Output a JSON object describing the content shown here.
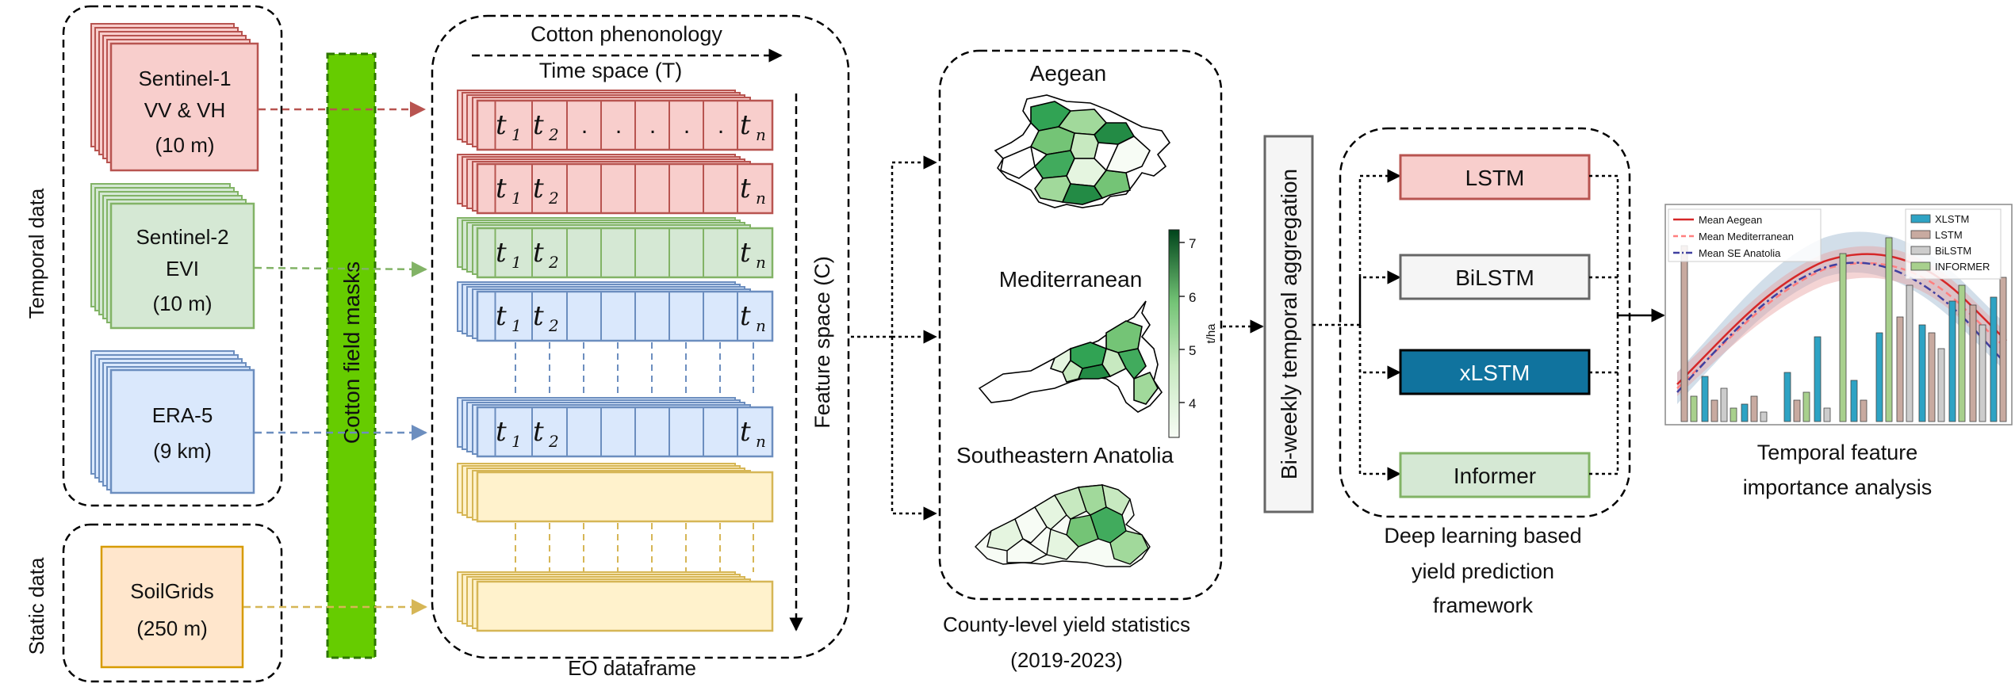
{
  "groups": {
    "temporal_label": "Temporal data",
    "static_label": "Static data",
    "mask_label": "Cotton field masks"
  },
  "sources": {
    "sentinel1": {
      "line1": "Sentinel-1",
      "line2": "VV & VH",
      "line3": "(10 m)"
    },
    "sentinel2": {
      "line1": "Sentinel-2",
      "line2": "EVI",
      "line3": "(10 m)"
    },
    "era5": {
      "line1": "ERA-5",
      "line2": "(9 km)"
    },
    "soilgrids": {
      "line1": "SoilGrids",
      "line2": "(250 m)"
    }
  },
  "dataframe": {
    "phenology_label": "Cotton phenonology",
    "time_label": "Time space (T)",
    "feature_label": "Feature space (C)",
    "caption": "EO dataframe",
    "cell_t1": "t",
    "cell_t2": "t",
    "cell_tn": "t",
    "sub_1": "1",
    "sub_2": "2",
    "sub_n": "n",
    "dot": "."
  },
  "maps": {
    "region1": "Aegean",
    "region2": "Mediterranean",
    "region3": "Southeastern Anatolia",
    "colorbar_unit": "t/ha",
    "colorbar_ticks": [
      "7",
      "6",
      "5",
      "4"
    ],
    "caption_line1": "County-level yield statistics",
    "caption_line2": "(2019-2023)"
  },
  "aggregation": {
    "label": "Bi-weekly temporal aggregation"
  },
  "models": {
    "lstm": "LSTM",
    "bilstm": "BiLSTM",
    "xlstm": "xLSTM",
    "informer": "Informer",
    "caption_line1": "Deep learning based",
    "caption_line2": "yield prediction",
    "caption_line3": "framework"
  },
  "importance": {
    "legend_lines": [
      "Mean Aegean",
      "Mean Mediterranean",
      "Mean SE Anatolia"
    ],
    "legend_bars": [
      "XLSTM",
      "LSTM",
      "BiLSTM",
      "INFORMER"
    ],
    "caption_line1": "Temporal feature",
    "caption_line2": "importance analysis"
  },
  "colors": {
    "sentinel1_fill": "#f8cecc",
    "sentinel1_stroke": "#b85450",
    "sentinel2_fill": "#d5e8d4",
    "sentinel2_stroke": "#82b366",
    "era5_fill": "#dae8fc",
    "era5_stroke": "#6c8ebf",
    "soil_fill": "#ffe6cc",
    "soil_stroke": "#d79b00",
    "static_row_fill": "#fff2cc",
    "static_row_stroke": "#d6b656",
    "mask_fill": "#66cc00",
    "mask_stroke": "#2d7600",
    "xlstm_fill": "#10739e",
    "bilstm_fill": "#f5f5f5",
    "bilstm_stroke": "#666666"
  }
}
